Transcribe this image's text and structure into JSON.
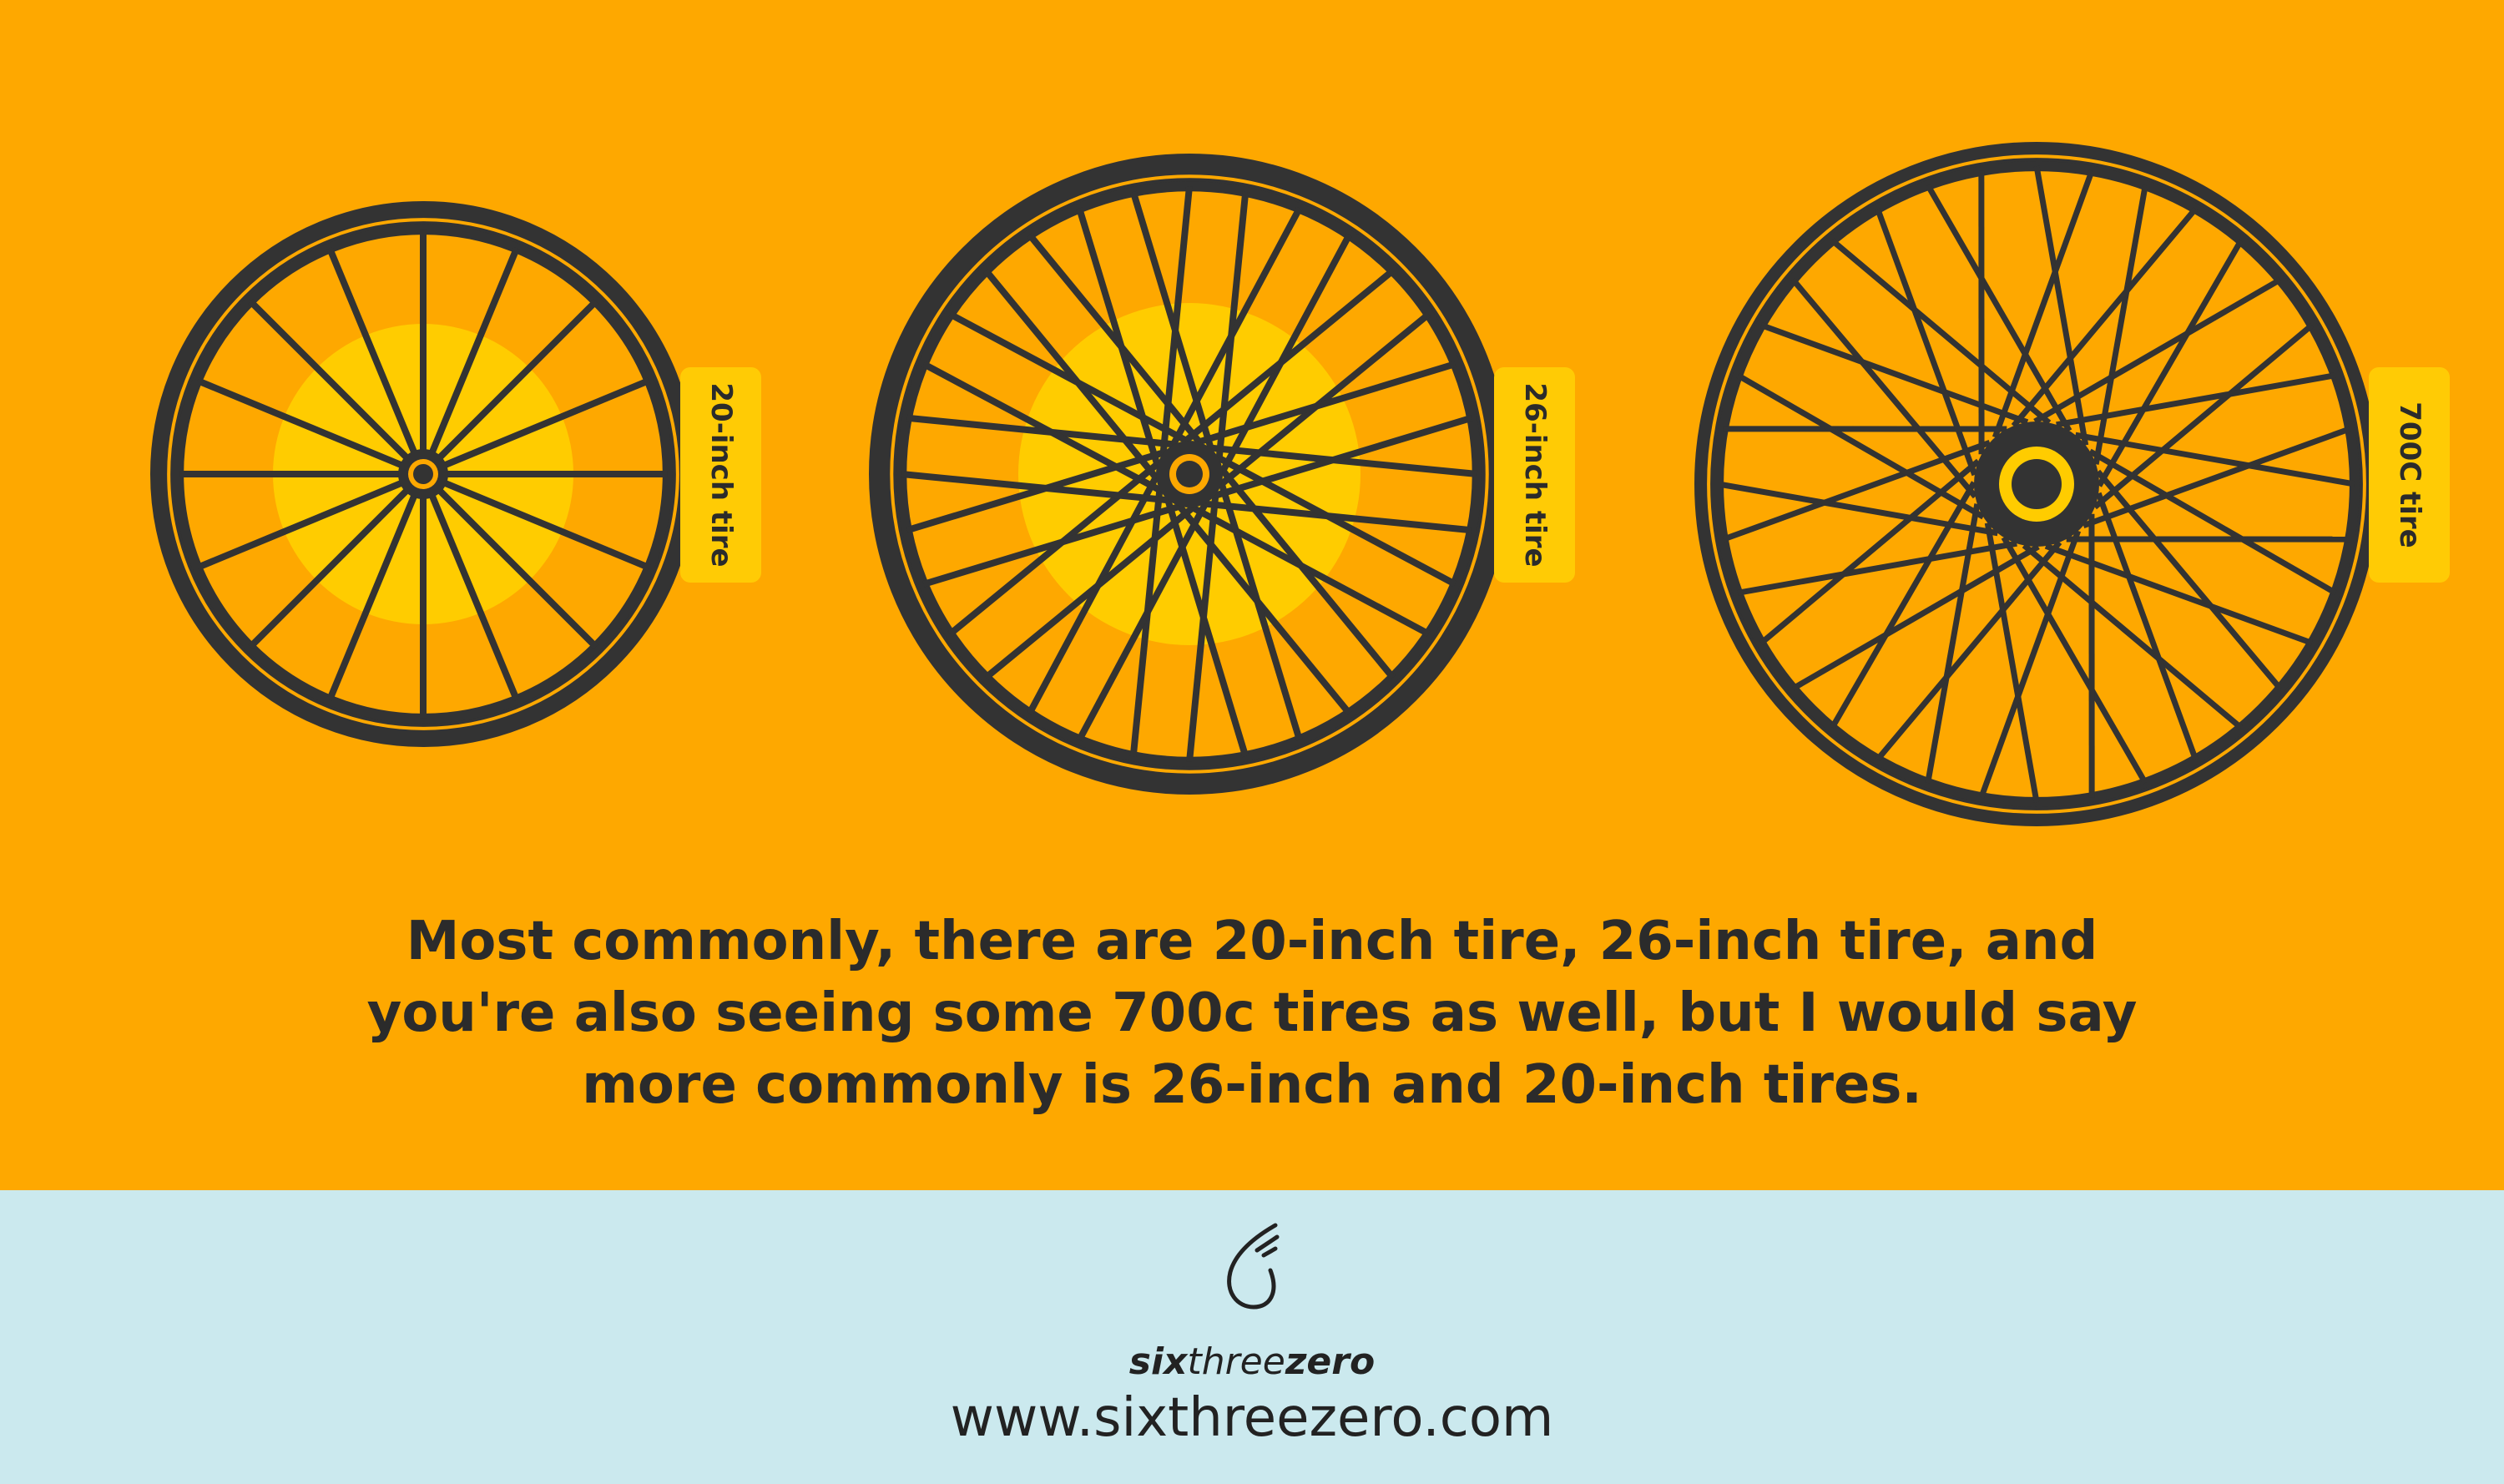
{
  "colors": {
    "background": "#FEA800",
    "glow": "#FFCC00",
    "tire": "#333333",
    "tag": "#FFCB05",
    "footer": "#CBE9EE",
    "text": "#2b2b2b"
  },
  "wheels": [
    {
      "label": "20-inch tire",
      "spoke_style": "radial"
    },
    {
      "label": "26-inch tire",
      "spoke_style": "crossed"
    },
    {
      "label": "700C tire",
      "spoke_style": "crossed"
    }
  ],
  "quote": "Most commonly, there are 20-inch tire, 26-inch tire, and you're also seeing some 700c tires as well, but I would say more commonly is 26-inch and 20-inch tires.",
  "footer": {
    "logo_icon": "wheel-wing-icon",
    "brand_six": "six",
    "brand_three": "three",
    "brand_zero": "zero",
    "url": "www.sixthreezero.com"
  }
}
